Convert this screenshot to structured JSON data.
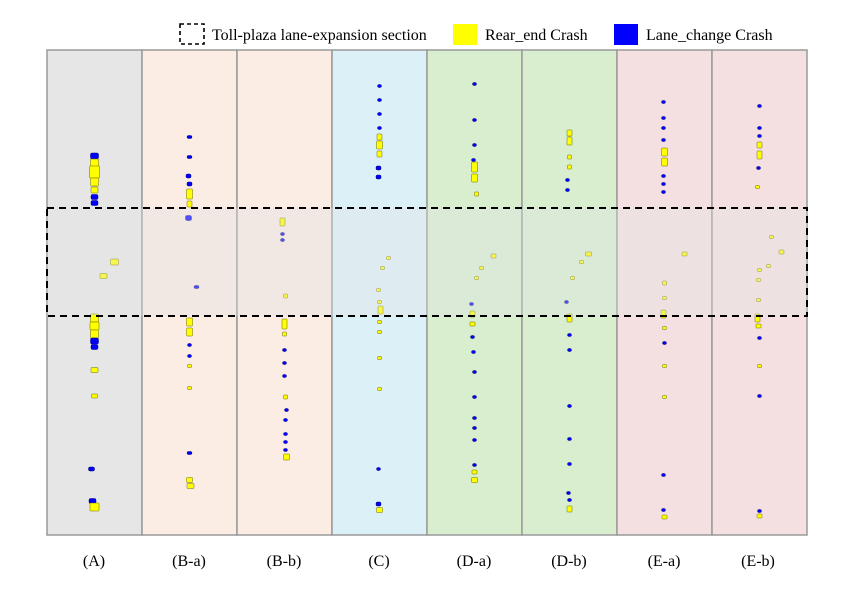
{
  "legend": {
    "items": [
      {
        "label": "Toll-plaza lane-expansion section",
        "swatch": "dashed-box"
      },
      {
        "label": "Rear_end Crash",
        "color": "#ffff00"
      },
      {
        "label": "Lane_change Crash",
        "color": "#0000ff"
      }
    ]
  },
  "colors": {
    "rear_end": "#ffff00",
    "lane_change": "#0000ff",
    "panel_border": "#9a9a9a",
    "section_box": "#000000"
  },
  "panels": [
    {
      "label": "(A)",
      "background": "#e6e6e6"
    },
    {
      "label": "(B-a)",
      "background": "#fbece4"
    },
    {
      "label": "(B-b)",
      "background": "#fbece4"
    },
    {
      "label": "(C)",
      "background": "#dcf0f8"
    },
    {
      "label": "(D-a)",
      "background": "#d8eecf"
    },
    {
      "label": "(D-b)",
      "background": "#d8eecf"
    },
    {
      "label": "(E-a)",
      "background": "#f5e0e1"
    },
    {
      "label": "(E-b)",
      "background": "#f5e0e1"
    }
  ]
}
